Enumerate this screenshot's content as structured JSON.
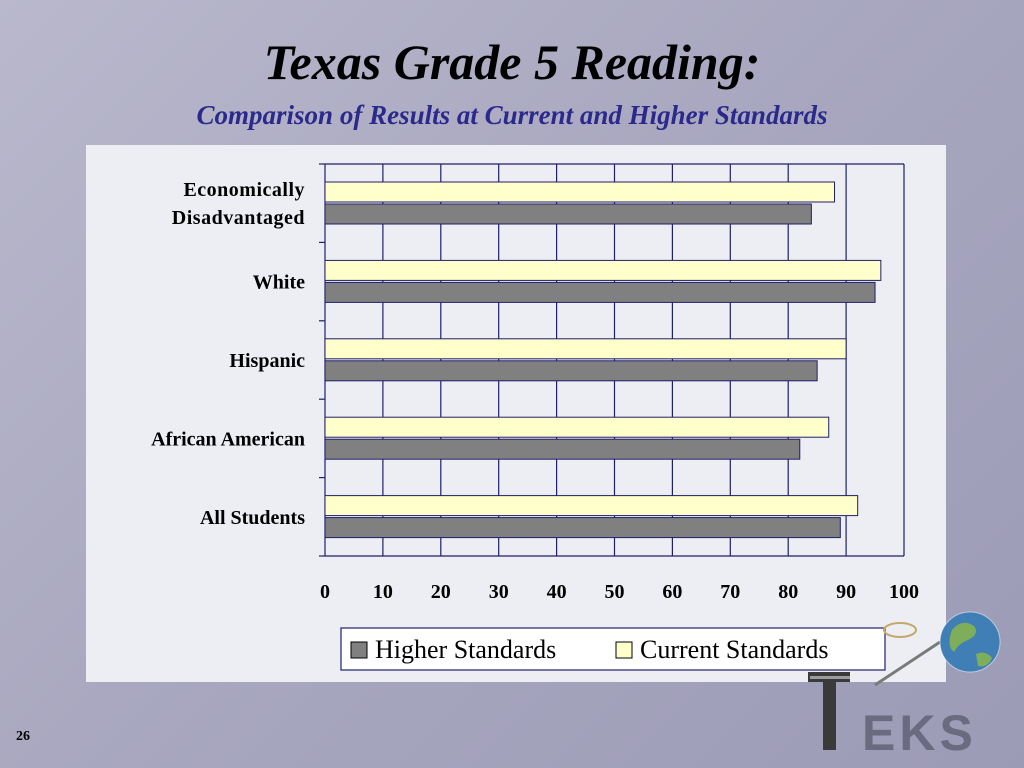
{
  "slide": {
    "title": "Texas Grade 5 Reading:",
    "subtitle": "Comparison of Results at Current and Higher Standards",
    "page_number": "26",
    "logo_text": "EKS",
    "logo_icon": "globe-satellite-icon"
  },
  "colors": {
    "higher": "#808080",
    "current": "#ffffcc",
    "frame": "#1f1f6a",
    "subtitle": "#2b2a8c"
  },
  "chart_data": {
    "type": "bar",
    "orientation": "horizontal",
    "categories": [
      [
        "Economically",
        "Disadvantaged"
      ],
      [
        "White"
      ],
      [
        "Hispanic"
      ],
      [
        "African American"
      ],
      [
        "All Students"
      ]
    ],
    "series": [
      {
        "name": "Current Standards",
        "values": [
          88,
          96,
          90,
          87,
          92
        ]
      },
      {
        "name": "Higher Standards",
        "values": [
          84,
          95,
          85,
          82,
          89
        ]
      }
    ],
    "xlim": [
      0,
      100
    ],
    "x_ticks": [
      "0",
      "10",
      "20",
      "30",
      "40",
      "50",
      "60",
      "70",
      "80",
      "90",
      "100"
    ],
    "grid": true,
    "legend_position": "bottom-right",
    "legend": [
      "Higher Standards",
      "Current Standards"
    ]
  }
}
